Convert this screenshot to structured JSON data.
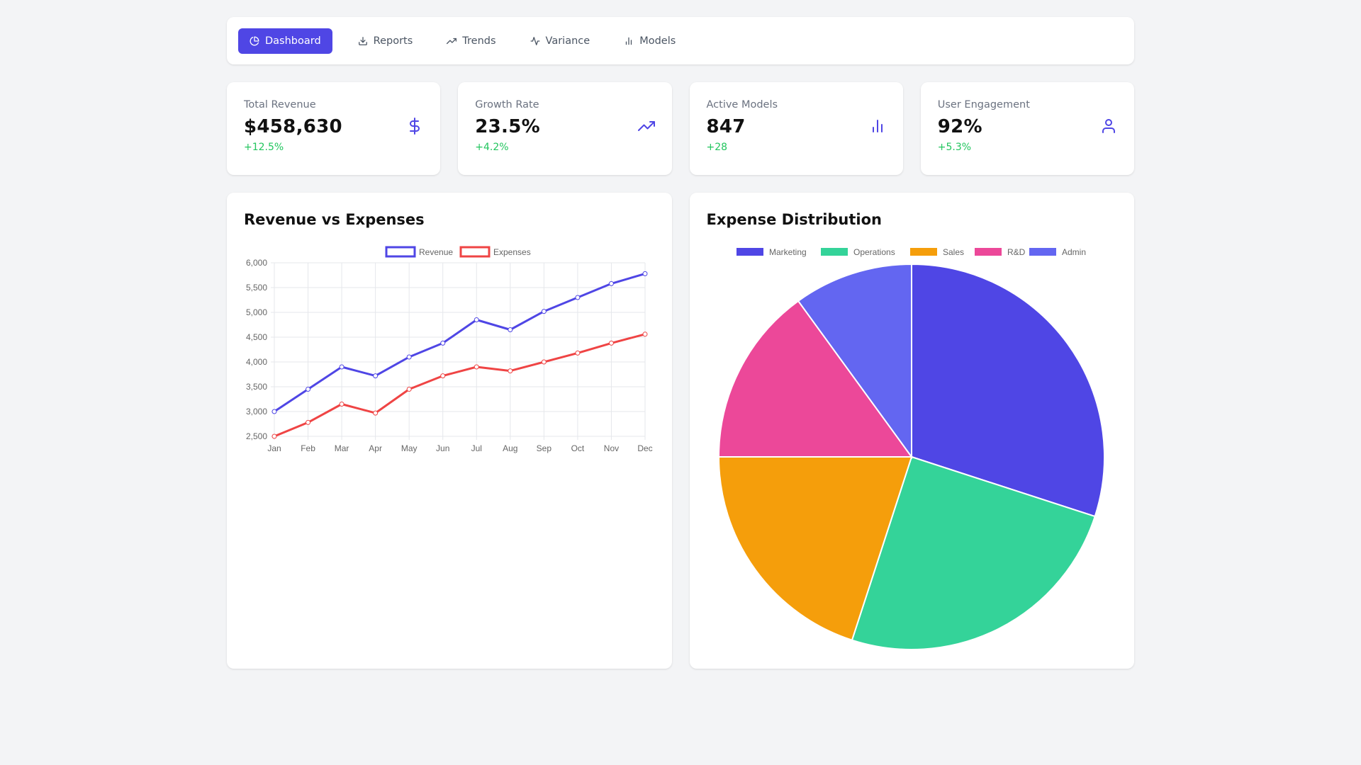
{
  "nav": {
    "items": [
      {
        "label": "Dashboard",
        "icon": "pie-chart-icon",
        "active": true
      },
      {
        "label": "Reports",
        "icon": "download-icon",
        "active": false
      },
      {
        "label": "Trends",
        "icon": "trending-up-icon",
        "active": false
      },
      {
        "label": "Variance",
        "icon": "activity-icon",
        "active": false
      },
      {
        "label": "Models",
        "icon": "bar-chart-icon",
        "active": false
      }
    ]
  },
  "stats": [
    {
      "label": "Total Revenue",
      "value": "$458,630",
      "change": "+12.5%",
      "icon": "dollar-icon"
    },
    {
      "label": "Growth Rate",
      "value": "23.5%",
      "change": "+4.2%",
      "icon": "trending-up-icon"
    },
    {
      "label": "Active Models",
      "value": "847",
      "change": "+28",
      "icon": "bar-chart-icon"
    },
    {
      "label": "User Engagement",
      "value": "92%",
      "change": "+5.3%",
      "icon": "user-icon"
    }
  ],
  "colors": {
    "accent": "#4f46e5",
    "positive": "#22c55e",
    "revenue": "#4f46e5",
    "expenses": "#ef4444"
  },
  "chart_data": [
    {
      "type": "line",
      "title": "Revenue vs Expenses",
      "categories": [
        "Jan",
        "Feb",
        "Mar",
        "Apr",
        "May",
        "Jun",
        "Jul",
        "Aug",
        "Sep",
        "Oct",
        "Nov",
        "Dec"
      ],
      "series": [
        {
          "name": "Revenue",
          "color": "#4f46e5",
          "values": [
            3000,
            3450,
            3900,
            3720,
            4100,
            4380,
            4850,
            4650,
            5020,
            5300,
            5580,
            5780
          ]
        },
        {
          "name": "Expenses",
          "color": "#ef4444",
          "values": [
            2500,
            2780,
            3150,
            2970,
            3450,
            3720,
            3900,
            3820,
            4000,
            4180,
            4380,
            4560
          ]
        }
      ],
      "ylim": [
        2500,
        6000
      ],
      "yticks": [
        2500,
        3000,
        3500,
        4000,
        4500,
        5000,
        5500,
        6000
      ],
      "ytick_labels": [
        "2,500",
        "3,000",
        "3,500",
        "4,000",
        "4,500",
        "5,000",
        "5,500",
        "6,000"
      ],
      "grid": true,
      "legend": "top-center"
    },
    {
      "type": "pie",
      "title": "Expense Distribution",
      "categories": [
        "Marketing",
        "Operations",
        "Sales",
        "R&D",
        "Admin"
      ],
      "values": [
        30,
        25,
        20,
        15,
        10
      ],
      "colors": [
        "#4f46e5",
        "#34d399",
        "#f59e0b",
        "#ec4899",
        "#6366f1"
      ],
      "legend": "top-center"
    }
  ]
}
